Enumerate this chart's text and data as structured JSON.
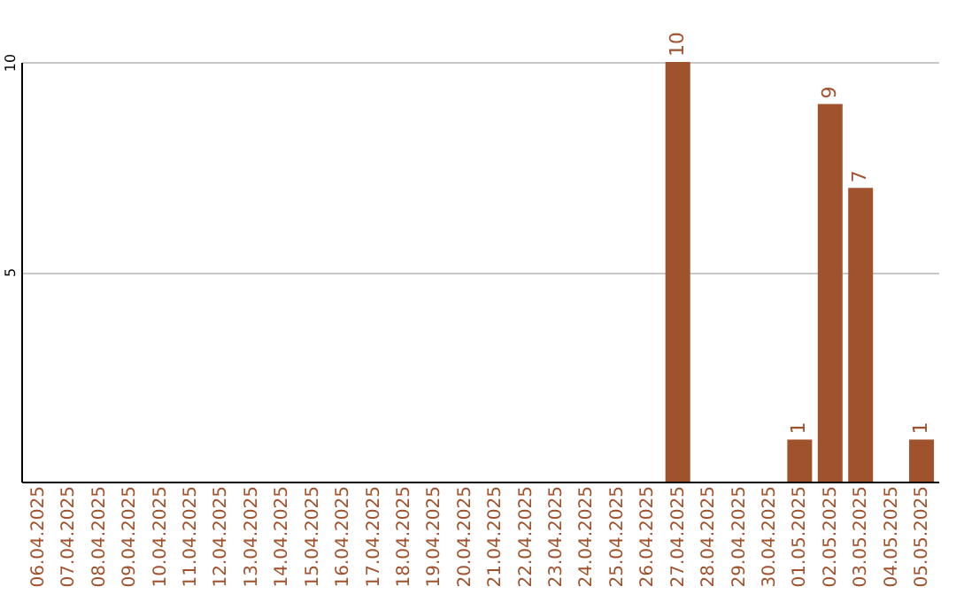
{
  "chart_data": {
    "type": "bar",
    "categories": [
      "06.04.2025",
      "07.04.2025",
      "08.04.2025",
      "09.04.2025",
      "10.04.2025",
      "11.04.2025",
      "12.04.2025",
      "13.04.2025",
      "14.04.2025",
      "15.04.2025",
      "16.04.2025",
      "17.04.2025",
      "18.04.2025",
      "19.04.2025",
      "20.04.2025",
      "21.04.2025",
      "22.04.2025",
      "23.04.2025",
      "24.04.2025",
      "25.04.2025",
      "26.04.2025",
      "27.04.2025",
      "28.04.2025",
      "29.04.2025",
      "30.04.2025",
      "01.05.2025",
      "02.05.2025",
      "03.05.2025",
      "04.05.2025",
      "05.05.2025"
    ],
    "values": [
      0,
      0,
      0,
      0,
      0,
      0,
      0,
      0,
      0,
      0,
      0,
      0,
      0,
      0,
      0,
      0,
      0,
      0,
      0,
      0,
      0,
      10,
      0,
      0,
      0,
      1,
      9,
      7,
      0,
      1
    ],
    "value_labels": [
      null,
      null,
      null,
      null,
      null,
      null,
      null,
      null,
      null,
      null,
      null,
      null,
      null,
      null,
      null,
      null,
      null,
      null,
      null,
      null,
      null,
      "10",
      null,
      null,
      null,
      "1",
      "9",
      "7",
      null,
      "1"
    ],
    "color": "#a0522d",
    "ylim": [
      0,
      10
    ],
    "yticks": [
      5,
      10
    ],
    "grid": "y"
  }
}
